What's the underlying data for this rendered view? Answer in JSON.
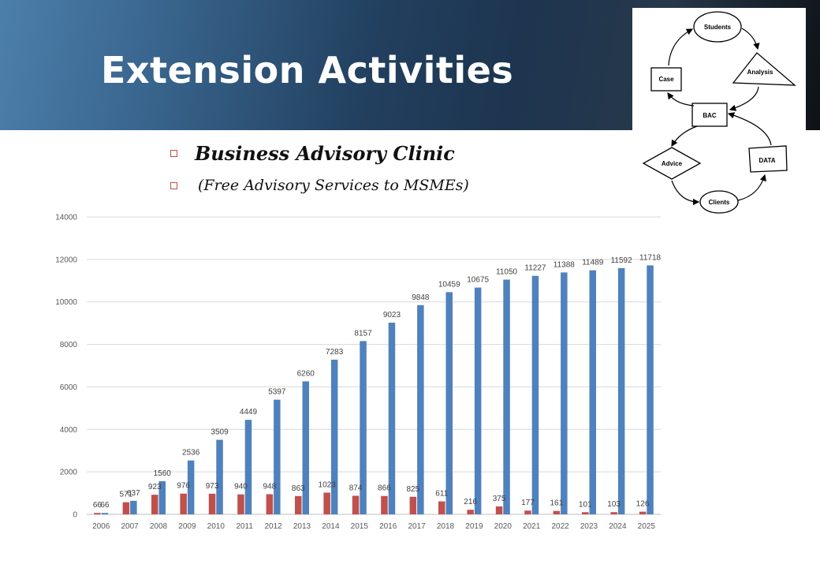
{
  "slide": {
    "title": "Extension Activities",
    "bullets": [
      "Business Advisory Clinic",
      "(Free Advisory Services to MSMEs)"
    ],
    "accent": "#c0504d"
  },
  "diagram": {
    "nodes": [
      "Students",
      "Analysis",
      "Case",
      "BAC",
      "Advice",
      "DATA",
      "Clients"
    ]
  },
  "chart_data": {
    "type": "bar",
    "categories": [
      "2006",
      "2007",
      "2008",
      "2009",
      "2010",
      "2011",
      "2012",
      "2013",
      "2014",
      "2015",
      "2016",
      "2017",
      "2018",
      "2019",
      "2020",
      "2021",
      "2022",
      "2023",
      "2024",
      "2025"
    ],
    "series": [
      {
        "color": "#c0504d",
        "values": [
          66,
          571,
          923,
          976,
          973,
          940,
          948,
          863,
          1023,
          874,
          866,
          825,
          611,
          216,
          375,
          177,
          161,
          101,
          103,
          126
        ]
      },
      {
        "color": "#4f81bd",
        "values": [
          66,
          637,
          1560,
          2536,
          3509,
          4449,
          5397,
          6260,
          7283,
          8157,
          9023,
          9848,
          10459,
          10675,
          11050,
          11227,
          11388,
          11489,
          11592,
          11718
        ]
      }
    ],
    "title": "",
    "xlabel": "",
    "ylabel": "",
    "ylim": [
      0,
      14000
    ],
    "yticks": [
      0,
      2000,
      4000,
      6000,
      8000,
      10000,
      12000,
      14000
    ],
    "grid": true,
    "legend": "none"
  }
}
